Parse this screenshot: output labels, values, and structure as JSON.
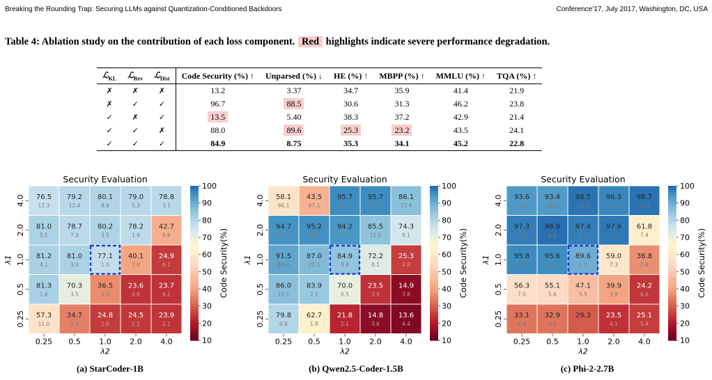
{
  "header": {
    "left": "Breaking the Rounding Trap: Securing LLMs against Quantization-Conditioned Backdoors",
    "right": "Conference’17, July 2017, Washington, DC, USA"
  },
  "caption": {
    "before": "Table 4: Ablation study on the contribution of each loss component.",
    "highlight": "Red",
    "after": "highlights indicate severe performance degradation."
  },
  "table": {
    "loss_headers": [
      {
        "sym": "ℒ",
        "sub": "KL"
      },
      {
        "sym": "ℒ",
        "sub": "Rev"
      },
      {
        "sym": "ℒ",
        "sub": "Dist"
      }
    ],
    "metric_headers": [
      "Code Security (%) ↑",
      "Unparsed (%) ↓",
      "HE (%) ↑",
      "MBPP (%) ↑",
      "MMLU (%) ↑",
      "TQA (%) ↑"
    ],
    "rows": [
      {
        "marks": [
          "✗",
          "✗",
          "✗"
        ],
        "values": [
          "13.2",
          "3.37",
          "34.7",
          "35.9",
          "41.4",
          "21.9"
        ],
        "highlight": [
          false,
          false,
          false,
          false,
          false,
          false
        ]
      },
      {
        "marks": [
          "✗",
          "✓",
          "✓"
        ],
        "values": [
          "96.7",
          "88.5",
          "30.6",
          "31.3",
          "46.2",
          "23.8"
        ],
        "highlight": [
          false,
          true,
          false,
          false,
          false,
          false
        ]
      },
      {
        "marks": [
          "✓",
          "✗",
          "✓"
        ],
        "values": [
          "13.5",
          "5.40",
          "38.3",
          "37.2",
          "42.9",
          "21.4"
        ],
        "highlight": [
          true,
          false,
          false,
          false,
          false,
          false
        ]
      },
      {
        "marks": [
          "✓",
          "✓",
          "✗"
        ],
        "values": [
          "88.0",
          "89.6",
          "25.3",
          "23.2",
          "43.5",
          "24.1"
        ],
        "highlight": [
          false,
          true,
          true,
          true,
          false,
          false
        ]
      },
      {
        "marks": [
          "✓",
          "✓",
          "✓"
        ],
        "values": [
          "84.9",
          "8.75",
          "35.3",
          "34.1",
          "45.2",
          "22.8"
        ],
        "highlight": [
          false,
          false,
          false,
          false,
          false,
          false
        ]
      }
    ]
  },
  "chart_data": [
    {
      "type": "heatmap",
      "title": "Security Evaluation",
      "subcaption": "(a) StarCoder-1B",
      "x_label": "λ2",
      "y_label": "λ1",
      "x_ticks": [
        "0.25",
        "0.5",
        "1.0",
        "2.0",
        "4.0"
      ],
      "y_ticks": [
        "4.0",
        "2.0",
        "1.0",
        "0.5",
        "0.25"
      ],
      "main_values": [
        [
          76.5,
          79.2,
          80.1,
          79.0,
          78.8
        ],
        [
          81.0,
          78.7,
          80.2,
          78.2,
          42.7
        ],
        [
          81.2,
          81.0,
          77.1,
          40.1,
          24.9
        ],
        [
          81.3,
          70.3,
          36.5,
          23.6,
          23.7
        ],
        [
          57.3,
          34.7,
          24.8,
          24.5,
          23.9
        ]
      ],
      "sub_values": [
        [
          "12.3",
          "12.4",
          "8.9",
          "5.3",
          "3.1"
        ],
        [
          "5.1",
          "7.3",
          "3.5",
          "1.9",
          "6.6"
        ],
        [
          "4.1",
          "3.9",
          "1.0",
          "7.0",
          "6.1"
        ],
        [
          "1.6",
          "3.5",
          "5.3",
          "4.8",
          "6.1"
        ],
        [
          "11.0",
          "2.1",
          "2.0",
          "2.2",
          "2.1"
        ]
      ],
      "highlight_cell": [
        2,
        2
      ],
      "colorbar_label": "Code Security(%)",
      "colorbar_ticks": [
        "10",
        "20",
        "30",
        "40",
        "50",
        "60",
        "70",
        "80",
        "90",
        "100"
      ],
      "vmin": 10,
      "vmax": 100
    },
    {
      "type": "heatmap",
      "title": "Security Evaluation",
      "subcaption": "(b) Qwen2.5-Coder-1.5B",
      "x_label": "λ2",
      "y_label": "λ1",
      "x_ticks": [
        "0.25",
        "0.5",
        "1.0",
        "2.0",
        "4.0"
      ],
      "y_ticks": [
        "4.0",
        "2.0",
        "1.0",
        "0.5",
        "0.25"
      ],
      "main_values": [
        [
          58.1,
          43.5,
          95.7,
          95.7,
          86.1
        ],
        [
          94.7,
          95.2,
          94.2,
          85.5,
          74.3
        ],
        [
          91.5,
          87.0,
          84.9,
          72.2,
          25.3
        ],
        [
          86.0,
          83.9,
          70.0,
          23.5,
          14.9
        ],
        [
          79.8,
          62.7,
          21.8,
          14.8,
          13.6
        ]
      ],
      "sub_values": [
        [
          "96.1",
          "97.1",
          "97.1",
          "79.9",
          "17.4"
        ],
        [
          "95.3",
          "89.5",
          "52.3",
          "11.5",
          "0.1"
        ],
        [
          "63.4",
          "22.1",
          "8.8",
          "0.1",
          "4.8"
        ],
        [
          "10.1",
          "2.1",
          "0.5",
          "3.9",
          "3.8"
        ],
        [
          "0.8",
          "1.8",
          "2.1",
          "3.6",
          "4.4"
        ]
      ],
      "highlight_cell": [
        2,
        2
      ],
      "colorbar_label": "Code Security(%)",
      "colorbar_ticks": [
        "10",
        "20",
        "30",
        "40",
        "50",
        "60",
        "70",
        "80",
        "90",
        "100"
      ],
      "vmin": 10,
      "vmax": 100
    },
    {
      "type": "heatmap",
      "title": "Security Evaluation",
      "subcaption": "(c) Phi-2-2.7B",
      "x_label": "λ2",
      "y_label": "λ1",
      "x_ticks": [
        "0.25",
        "0.5",
        "1.0",
        "2.0",
        "4.0"
      ],
      "y_ticks": [
        "4.0",
        "2.0",
        "1.0",
        "0.5",
        "0.25"
      ],
      "main_values": [
        [
          93.6,
          93.4,
          98.5,
          96.3,
          98.7
        ],
        [
          97.3,
          98.9,
          97.4,
          97.9,
          61.8
        ],
        [
          95.8,
          95.6,
          89.6,
          59.0,
          36.8
        ],
        [
          56.3,
          55.1,
          47.1,
          39.9,
          24.2
        ],
        [
          33.1,
          32.9,
          29.3,
          23.5,
          25.1
        ]
      ],
      "sub_values": [
        [
          "53.3",
          "48.6",
          "33.9",
          "12.6",
          "10.6"
        ],
        [
          "12.3",
          "6.6",
          "8.3",
          "3.5",
          "7.4"
        ],
        [
          "8.8",
          "5.9",
          "1.3",
          "7.3",
          "2.8"
        ],
        [
          "7.0",
          "5.6",
          "5.5",
          "3.9",
          "6.6"
        ],
        [
          "4.4",
          "4.4",
          "3.1",
          "4.1",
          "5.4"
        ]
      ],
      "highlight_cell": [
        2,
        2
      ],
      "colorbar_label": "Code Security(%)",
      "colorbar_ticks": [
        "10",
        "20",
        "30",
        "40",
        "50",
        "60",
        "70",
        "80",
        "90",
        "100"
      ],
      "vmin": 10,
      "vmax": 100
    }
  ]
}
